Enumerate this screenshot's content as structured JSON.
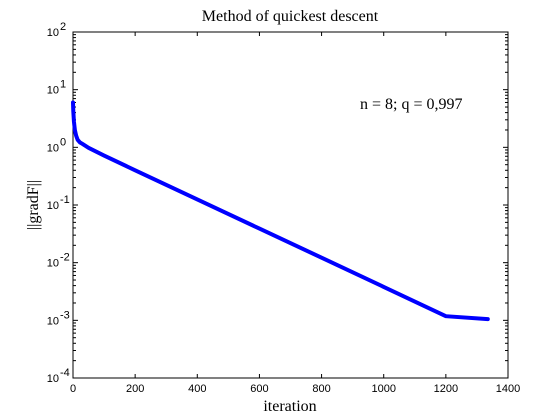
{
  "chart_data": {
    "type": "line",
    "title": "Method of quickest descent",
    "xlabel": "iteration",
    "ylabel": "||gradF||",
    "xlim": [
      0,
      1400
    ],
    "ylim_log10": [
      -4,
      2
    ],
    "yscale": "log",
    "grid": false,
    "x_ticks": [
      0,
      200,
      400,
      600,
      800,
      1000,
      1200,
      1400
    ],
    "y_ticks": [
      {
        "exp": -4,
        "base": "10",
        "sup": "-4"
      },
      {
        "exp": -3,
        "base": "10",
        "sup": "-3"
      },
      {
        "exp": -2,
        "base": "10",
        "sup": "-2"
      },
      {
        "exp": -1,
        "base": "10",
        "sup": "-1"
      },
      {
        "exp": 0,
        "base": "10",
        "sup": "0"
      },
      {
        "exp": 1,
        "base": "10",
        "sup": "1"
      },
      {
        "exp": 2,
        "base": "10",
        "sup": "2"
      }
    ],
    "annotation": "n = 8; q = 0,997",
    "series": [
      {
        "color": "#0000ff",
        "x": [
          0,
          1,
          3,
          6,
          10,
          15,
          22,
          30,
          50,
          100,
          200,
          400,
          600,
          800,
          1000,
          1200,
          1335
        ],
        "y": [
          6.0,
          4.2,
          2.8,
          2.0,
          1.6,
          1.35,
          1.22,
          1.15,
          0.98,
          0.72,
          0.4,
          0.125,
          0.039,
          0.0122,
          0.0038,
          0.00118,
          0.00105
        ]
      }
    ]
  }
}
